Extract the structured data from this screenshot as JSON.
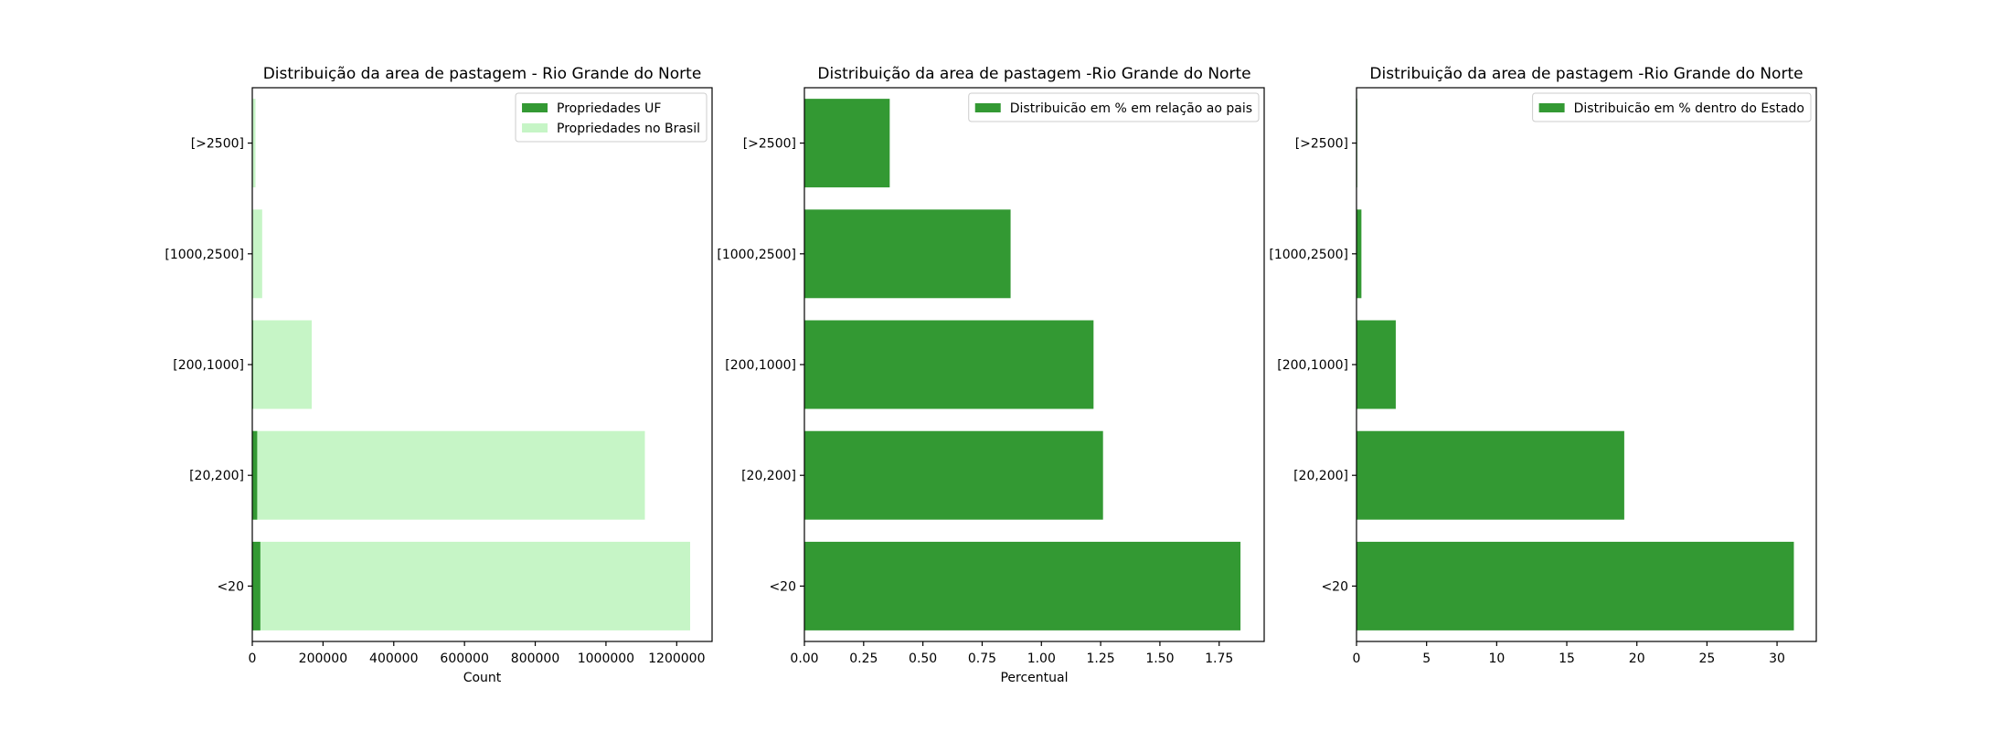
{
  "chart_data": [
    {
      "type": "bar",
      "orientation": "horizontal",
      "title": "Distribuição da area de pastagem - Rio Grande do Norte",
      "xlabel": "Count",
      "ylabel": "",
      "xlim": [
        0,
        1300000
      ],
      "xticks": [
        0,
        200000,
        400000,
        600000,
        800000,
        1000000,
        1200000
      ],
      "categories": [
        "<20",
        "[20,200]",
        "[200,1000]",
        "[1000,2500]",
        "[>2500]"
      ],
      "series": [
        {
          "name": "Propriedades no Brasil",
          "color": "#c6f5c6",
          "values": [
            1238000,
            1110000,
            168000,
            28000,
            9000
          ]
        },
        {
          "name": "Propriedades UF",
          "color": "#339933",
          "values": [
            22800,
            13900,
            2050,
            240,
            33
          ]
        }
      ],
      "legend": "top-right",
      "legend_order": [
        1,
        0
      ],
      "grid": false
    },
    {
      "type": "bar",
      "orientation": "horizontal",
      "title": "Distribuição da area de pastagem -Rio Grande do Norte",
      "xlabel": "Percentual",
      "ylabel": "",
      "xlim": [
        0,
        1.94
      ],
      "xticks": [
        0.0,
        0.25,
        0.5,
        0.75,
        1.0,
        1.25,
        1.5,
        1.75
      ],
      "tick_decimals": 2,
      "categories": [
        "<20",
        "[20,200]",
        "[200,1000]",
        "[1000,2500]",
        "[>2500]"
      ],
      "series": [
        {
          "name": "Distribuicão em % em relação ao pais",
          "color": "#339933",
          "values": [
            1.84,
            1.26,
            1.22,
            0.87,
            0.36
          ]
        }
      ],
      "legend": "top-right",
      "grid": false
    },
    {
      "type": "bar",
      "orientation": "horizontal",
      "title": "Distribuição da area de pastagem -Rio Grande do Norte",
      "xlabel": "",
      "ylabel": "",
      "xlim": [
        0,
        32.8
      ],
      "xticks": [
        0,
        5,
        10,
        15,
        20,
        25,
        30
      ],
      "categories": [
        "<20",
        "[20,200]",
        "[200,1000]",
        "[1000,2500]",
        "[>2500]"
      ],
      "series": [
        {
          "name": "Distribuicão em % dentro do Estado",
          "color": "#339933",
          "values": [
            31.2,
            19.1,
            2.8,
            0.35,
            0.05
          ]
        }
      ],
      "legend": "top-right",
      "grid": false
    }
  ]
}
